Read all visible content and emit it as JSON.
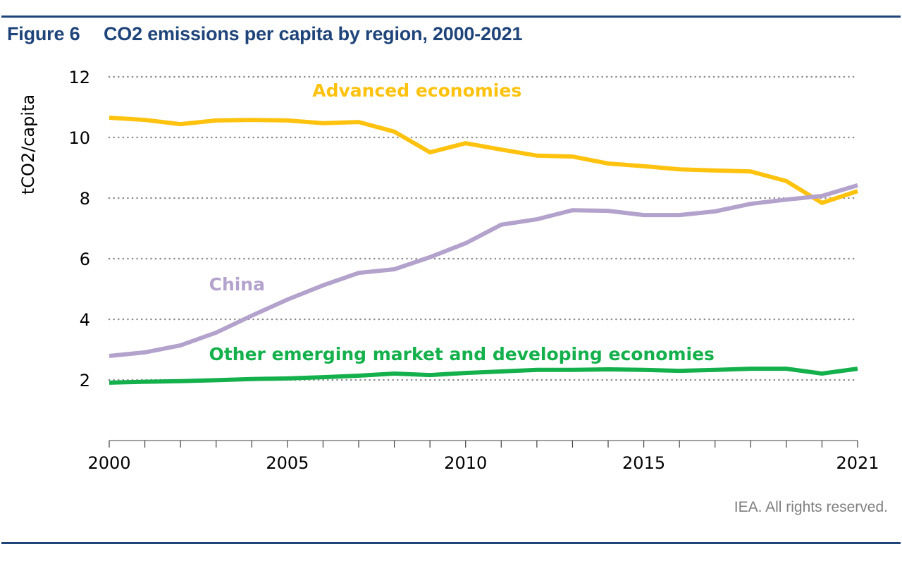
{
  "figure": {
    "number": "Figure 6",
    "title": "CO2 emissions per capita by region, 2000-2021",
    "credit": "IEA. All rights reserved."
  },
  "colors": {
    "frame": "#1f4479",
    "advanced": "#ffc20e",
    "china": "#b3a2cc",
    "other": "#13b04b",
    "grid": "#8c8c8c",
    "axis": "#808080"
  },
  "chart_data": {
    "type": "line",
    "title": "CO2 emissions per capita by region, 2000-2021",
    "xlabel": "",
    "ylabel": "tCO2/capita",
    "x": [
      2000,
      2001,
      2002,
      2003,
      2004,
      2005,
      2006,
      2007,
      2008,
      2009,
      2010,
      2011,
      2012,
      2013,
      2014,
      2015,
      2016,
      2017,
      2018,
      2019,
      2020,
      2021
    ],
    "xlim": [
      2000,
      2021
    ],
    "ylim": [
      0,
      12
    ],
    "xticks": [
      2000,
      2005,
      2010,
      2015,
      2021
    ],
    "yticks": [
      2,
      4,
      6,
      8,
      10,
      12
    ],
    "grid": "horizontal dotted",
    "legend": "inline labels",
    "series": [
      {
        "name": "Advanced economies",
        "color_key": "advanced",
        "values": [
          10.65,
          10.58,
          10.44,
          10.56,
          10.58,
          10.56,
          10.47,
          10.51,
          10.19,
          9.51,
          9.81,
          9.6,
          9.4,
          9.37,
          9.14,
          9.05,
          8.95,
          8.91,
          8.88,
          8.56,
          7.84,
          8.23
        ],
        "label_at": [
          2005.7,
          11.35
        ]
      },
      {
        "name": "China",
        "color_key": "china",
        "values": [
          2.79,
          2.91,
          3.14,
          3.56,
          4.12,
          4.65,
          5.12,
          5.53,
          5.65,
          6.05,
          6.51,
          7.12,
          7.3,
          7.6,
          7.58,
          7.44,
          7.44,
          7.56,
          7.81,
          7.95,
          8.07,
          8.42
        ],
        "label_at": [
          2002.8,
          4.95
        ]
      },
      {
        "name": "Other emerging market and developing economies",
        "color_key": "other",
        "values": [
          1.91,
          1.94,
          1.96,
          1.99,
          2.03,
          2.05,
          2.09,
          2.14,
          2.21,
          2.16,
          2.23,
          2.28,
          2.33,
          2.33,
          2.35,
          2.33,
          2.3,
          2.33,
          2.37,
          2.37,
          2.21,
          2.37
        ],
        "label_at": [
          2002.8,
          2.65
        ]
      }
    ]
  }
}
